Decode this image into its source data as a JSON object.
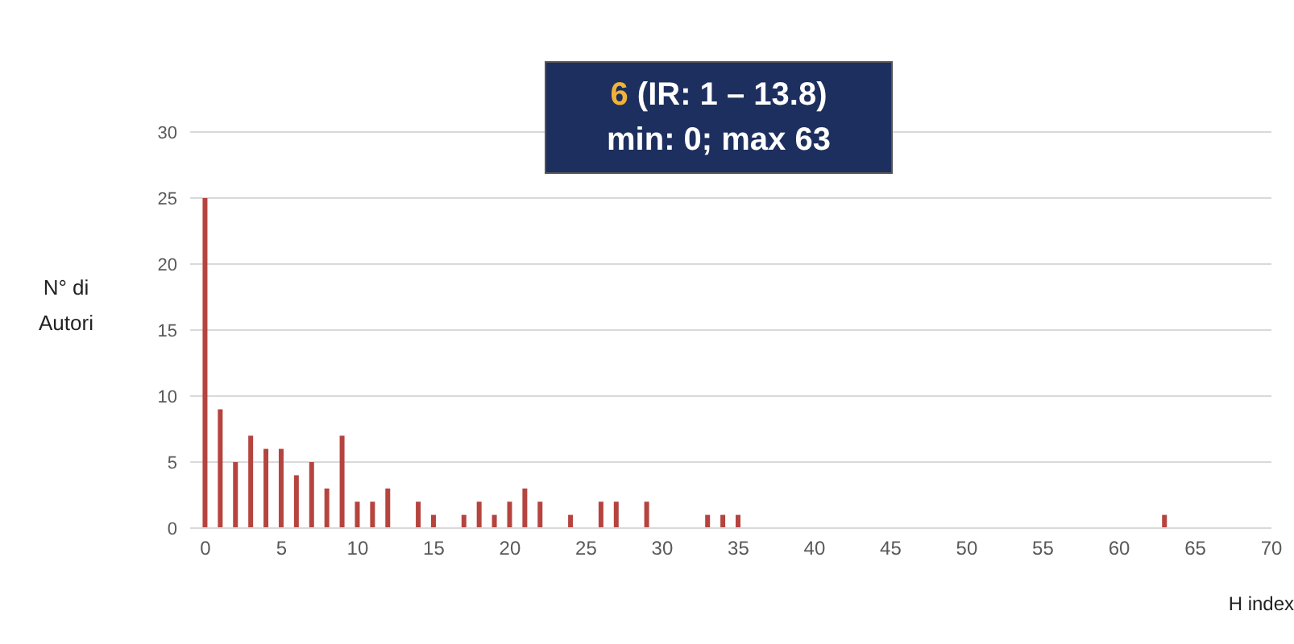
{
  "chart_data": {
    "type": "bar",
    "xlabel": "H index",
    "ylabel": "N° di Autori",
    "annotations": [
      "6 (IR: 1 – 13.8)",
      "min: 0; max 63"
    ],
    "x": [
      0,
      1,
      2,
      3,
      4,
      5,
      6,
      7,
      8,
      9,
      10,
      11,
      12,
      14,
      15,
      17,
      18,
      19,
      20,
      21,
      22,
      24,
      26,
      27,
      29,
      33,
      34,
      35,
      63
    ],
    "values": [
      25,
      9,
      5,
      7,
      6,
      6,
      4,
      5,
      3,
      7,
      2,
      2,
      3,
      2,
      1,
      1,
      2,
      1,
      2,
      3,
      2,
      1,
      2,
      2,
      2,
      1,
      1,
      1,
      1
    ],
    "color": "#b5443f",
    "xlim": [
      -1,
      70
    ],
    "xticks": [
      0,
      5,
      10,
      15,
      20,
      25,
      30,
      35,
      40,
      45,
      50,
      55,
      60,
      65,
      70
    ],
    "ylim": [
      0,
      30
    ],
    "yticks": [
      0,
      5,
      10,
      15,
      20,
      25,
      30
    ],
    "grid": "y",
    "legend": false
  }
}
